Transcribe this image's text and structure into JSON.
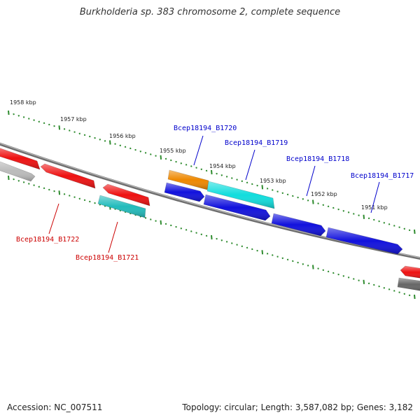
{
  "title": "Burkholderia sp. 383 chromosome 2, complete sequence",
  "footer": {
    "accession": "Accession: NC_007511",
    "summary": "Topology: circular; Length: 3,587,082 bp; Genes: 3,182"
  },
  "colors": {
    "backbone": "#8a8a8a",
    "tick": "#2e8b2e",
    "label_forward": "#0000cc",
    "label_reverse": "#cc0000"
  },
  "scale_labels": [
    "1958 kbp",
    "1957 kbp",
    "1956 kbp",
    "1955 kbp",
    "1954 kbp",
    "1953 kbp",
    "1952 kbp",
    "1951 kbp"
  ],
  "genes": [
    {
      "strand": "reverse",
      "color": "#bbbbbb"
    },
    {
      "strand": "reverse",
      "color": "#ee1111"
    },
    {
      "strand": "reverse",
      "color": "#ee1111"
    },
    {
      "strand": "reverse",
      "color": "#ee1111"
    },
    {
      "strand": "reverse",
      "color": "#22bbbb"
    },
    {
      "strand": "forward",
      "color": "#ee8800"
    },
    {
      "strand": "forward",
      "color": "#11dddd"
    },
    {
      "strand": "forward",
      "color": "#1111dd"
    },
    {
      "strand": "forward",
      "color": "#1111dd"
    },
    {
      "strand": "forward",
      "color": "#1111dd"
    },
    {
      "strand": "forward",
      "color": "#1111dd"
    },
    {
      "strand": "reverse",
      "color": "#ee1111"
    },
    {
      "strand": "reverse",
      "color": "#666666"
    }
  ],
  "gene_labels": {
    "forward": [
      "Bcep18194_B1720",
      "Bcep18194_B1719",
      "Bcep18194_B1718",
      "Bcep18194_B1717"
    ],
    "reverse": [
      "Bcep18194_B1722",
      "Bcep18194_B1721"
    ]
  }
}
